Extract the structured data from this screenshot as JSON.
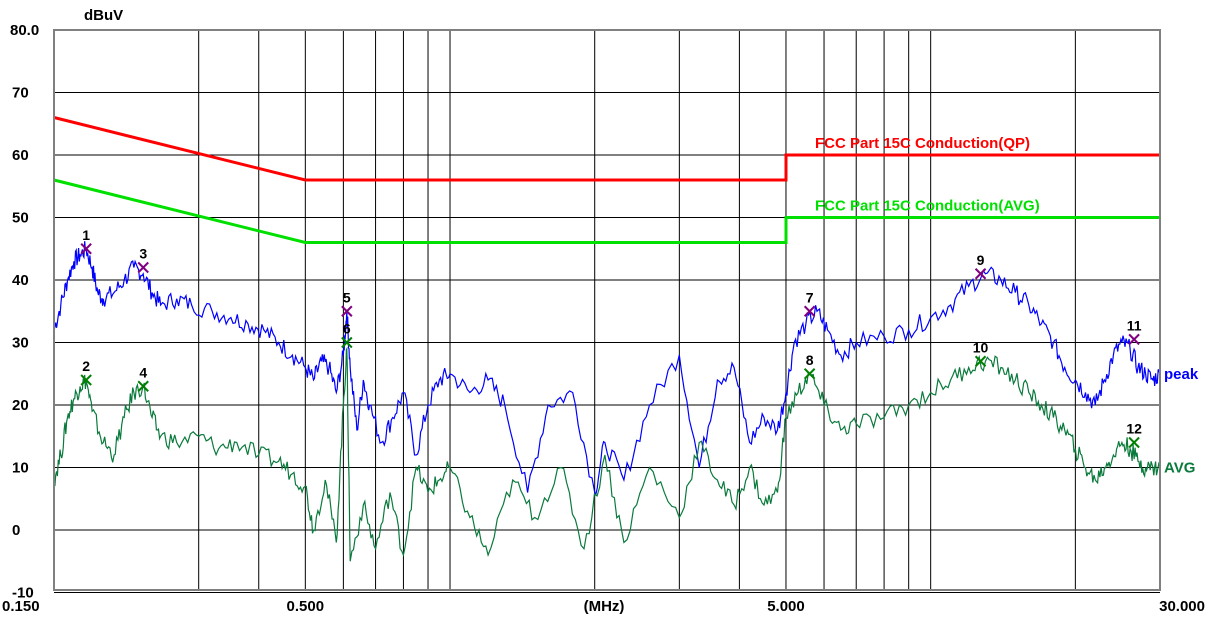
{
  "chart_data": {
    "type": "line",
    "y_unit": "dBuV",
    "x_unit": "(MHz)",
    "xscale": "log",
    "xlim": [
      0.15,
      30
    ],
    "ylim": [
      -15,
      80
    ],
    "grid": true,
    "y_ticks": [
      {
        "value": 80,
        "label": "80.0"
      },
      {
        "value": 70,
        "label": "70"
      },
      {
        "value": 60,
        "label": "60"
      },
      {
        "value": 50,
        "label": "50"
      },
      {
        "value": 40,
        "label": "40"
      },
      {
        "value": 30,
        "label": "30"
      },
      {
        "value": 20,
        "label": "20"
      },
      {
        "value": 10,
        "label": "10"
      },
      {
        "value": 0,
        "label": "0"
      },
      {
        "value": -10,
        "label": "-10"
      }
    ],
    "x_tick_labels": [
      {
        "value": 0.15,
        "label": "0.150"
      },
      {
        "value": 0.5,
        "label": "0.500"
      },
      {
        "value": 5,
        "label": "5.000"
      },
      {
        "value": 30,
        "label": "30.000"
      }
    ],
    "x_grid_values": [
      0.3,
      0.4,
      0.5,
      0.6,
      0.7,
      0.8,
      0.9,
      1,
      2,
      3,
      4,
      5,
      6,
      7,
      8,
      9,
      10,
      20
    ],
    "limits": [
      {
        "name": "FCC Part 15C  Conduction(QP)",
        "color": "#ff0000",
        "points": [
          [
            0.15,
            66
          ],
          [
            0.5,
            56
          ],
          [
            5,
            56
          ],
          [
            5,
            60
          ],
          [
            30,
            60
          ]
        ]
      },
      {
        "name": "FCC Part 15C  Conduction(AVG)",
        "color": "#00e000",
        "points": [
          [
            0.15,
            56
          ],
          [
            0.5,
            46
          ],
          [
            5,
            46
          ],
          [
            5,
            50
          ],
          [
            30,
            50
          ]
        ]
      }
    ],
    "series": [
      {
        "name": "peak",
        "color": "#0000ff",
        "points": [
          [
            0.15,
            32
          ],
          [
            0.155,
            36
          ],
          [
            0.16,
            40
          ],
          [
            0.165,
            43
          ],
          [
            0.17,
            44
          ],
          [
            0.175,
            45
          ],
          [
            0.18,
            42
          ],
          [
            0.185,
            38
          ],
          [
            0.19,
            37
          ],
          [
            0.2,
            38
          ],
          [
            0.21,
            40
          ],
          [
            0.22,
            42
          ],
          [
            0.23,
            41
          ],
          [
            0.24,
            38
          ],
          [
            0.25,
            36
          ],
          [
            0.27,
            37
          ],
          [
            0.29,
            36
          ],
          [
            0.32,
            35
          ],
          [
            0.35,
            34
          ],
          [
            0.38,
            33
          ],
          [
            0.41,
            32
          ],
          [
            0.44,
            30
          ],
          [
            0.47,
            28
          ],
          [
            0.5,
            26
          ],
          [
            0.52,
            24
          ],
          [
            0.54,
            27
          ],
          [
            0.56,
            26
          ],
          [
            0.58,
            22
          ],
          [
            0.6,
            28
          ],
          [
            0.61,
            35
          ],
          [
            0.62,
            26
          ],
          [
            0.64,
            16
          ],
          [
            0.66,
            24
          ],
          [
            0.68,
            20
          ],
          [
            0.72,
            14
          ],
          [
            0.76,
            18
          ],
          [
            0.8,
            22
          ],
          [
            0.85,
            12
          ],
          [
            0.9,
            20
          ],
          [
            0.95,
            24
          ],
          [
            1.0,
            25
          ],
          [
            1.1,
            22
          ],
          [
            1.2,
            24
          ],
          [
            1.3,
            20
          ],
          [
            1.45,
            6
          ],
          [
            1.6,
            20
          ],
          [
            1.8,
            22
          ],
          [
            2.0,
            6
          ],
          [
            2.1,
            14
          ],
          [
            2.3,
            8
          ],
          [
            2.6,
            20
          ],
          [
            3.0,
            28
          ],
          [
            3.3,
            10
          ],
          [
            3.6,
            24
          ],
          [
            3.9,
            26
          ],
          [
            4.2,
            14
          ],
          [
            4.5,
            18
          ],
          [
            4.8,
            16
          ],
          [
            5.0,
            22
          ],
          [
            5.2,
            30
          ],
          [
            5.5,
            33
          ],
          [
            5.8,
            35
          ],
          [
            6.1,
            32
          ],
          [
            6.5,
            28
          ],
          [
            7.0,
            30
          ],
          [
            8.0,
            31
          ],
          [
            9.0,
            32
          ],
          [
            10,
            34
          ],
          [
            11,
            36
          ],
          [
            12,
            39
          ],
          [
            13,
            41
          ],
          [
            14,
            40
          ],
          [
            15,
            38
          ],
          [
            16,
            36
          ],
          [
            17,
            33
          ],
          [
            18,
            30
          ],
          [
            19,
            26
          ],
          [
            20,
            24
          ],
          [
            21,
            22
          ],
          [
            22,
            20
          ],
          [
            23,
            24
          ],
          [
            24,
            28
          ],
          [
            25,
            30
          ],
          [
            26,
            29
          ],
          [
            27,
            26
          ],
          [
            28,
            25
          ],
          [
            29,
            24
          ],
          [
            30,
            25
          ]
        ]
      },
      {
        "name": "AVG",
        "color": "#0a7a3c",
        "points": [
          [
            0.15,
            8
          ],
          [
            0.155,
            12
          ],
          [
            0.16,
            18
          ],
          [
            0.165,
            21
          ],
          [
            0.17,
            23
          ],
          [
            0.175,
            24
          ],
          [
            0.18,
            19
          ],
          [
            0.19,
            14
          ],
          [
            0.2,
            12
          ],
          [
            0.21,
            18
          ],
          [
            0.22,
            22
          ],
          [
            0.23,
            23
          ],
          [
            0.24,
            18
          ],
          [
            0.25,
            15
          ],
          [
            0.27,
            14
          ],
          [
            0.3,
            15
          ],
          [
            0.33,
            13
          ],
          [
            0.36,
            14
          ],
          [
            0.4,
            12
          ],
          [
            0.44,
            11
          ],
          [
            0.47,
            9
          ],
          [
            0.5,
            7
          ],
          [
            0.52,
            0
          ],
          [
            0.55,
            8
          ],
          [
            0.58,
            -2
          ],
          [
            0.6,
            20
          ],
          [
            0.61,
            29
          ],
          [
            0.62,
            -5
          ],
          [
            0.66,
            4
          ],
          [
            0.7,
            -3
          ],
          [
            0.75,
            6
          ],
          [
            0.8,
            -4
          ],
          [
            0.85,
            10
          ],
          [
            0.9,
            6
          ],
          [
            0.95,
            8
          ],
          [
            1.0,
            10
          ],
          [
            1.1,
            2
          ],
          [
            1.2,
            -4
          ],
          [
            1.35,
            8
          ],
          [
            1.5,
            2
          ],
          [
            1.7,
            10
          ],
          [
            1.9,
            -3
          ],
          [
            2.1,
            12
          ],
          [
            2.3,
            -2
          ],
          [
            2.6,
            10
          ],
          [
            3.0,
            2
          ],
          [
            3.3,
            14
          ],
          [
            3.6,
            8
          ],
          [
            3.9,
            4
          ],
          [
            4.2,
            10
          ],
          [
            4.5,
            4
          ],
          [
            4.8,
            6
          ],
          [
            5.0,
            18
          ],
          [
            5.3,
            22
          ],
          [
            5.6,
            25
          ],
          [
            6.0,
            20
          ],
          [
            6.5,
            16
          ],
          [
            7.0,
            17
          ],
          [
            8.0,
            18
          ],
          [
            9.0,
            20
          ],
          [
            10,
            22
          ],
          [
            11,
            24
          ],
          [
            12,
            26
          ],
          [
            13,
            27
          ],
          [
            14,
            26
          ],
          [
            15,
            24
          ],
          [
            16,
            22
          ],
          [
            17,
            20
          ],
          [
            18,
            18
          ],
          [
            19,
            16
          ],
          [
            20,
            13
          ],
          [
            21,
            10
          ],
          [
            22,
            8
          ],
          [
            23,
            10
          ],
          [
            24,
            12
          ],
          [
            25,
            14
          ],
          [
            26,
            13
          ],
          [
            27,
            11
          ],
          [
            28,
            10
          ],
          [
            29,
            10
          ],
          [
            30,
            10
          ]
        ]
      }
    ],
    "markers": [
      {
        "label": "1",
        "x": 0.175,
        "y": 45,
        "color": "#800080"
      },
      {
        "label": "2",
        "x": 0.175,
        "y": 24,
        "color": "#008000"
      },
      {
        "label": "3",
        "x": 0.23,
        "y": 42,
        "color": "#800080"
      },
      {
        "label": "4",
        "x": 0.23,
        "y": 23,
        "color": "#008000"
      },
      {
        "label": "5",
        "x": 0.61,
        "y": 35,
        "color": "#800080"
      },
      {
        "label": "6",
        "x": 0.61,
        "y": 30,
        "color": "#008000"
      },
      {
        "label": "7",
        "x": 5.6,
        "y": 35,
        "color": "#800080"
      },
      {
        "label": "8",
        "x": 5.6,
        "y": 25,
        "color": "#008000"
      },
      {
        "label": "9",
        "x": 12.7,
        "y": 41,
        "color": "#800080"
      },
      {
        "label": "10",
        "x": 12.7,
        "y": 27,
        "color": "#008000"
      },
      {
        "label": "11",
        "x": 26.5,
        "y": 30.5,
        "color": "#800080"
      },
      {
        "label": "12",
        "x": 26.5,
        "y": 14,
        "color": "#008000"
      }
    ]
  }
}
